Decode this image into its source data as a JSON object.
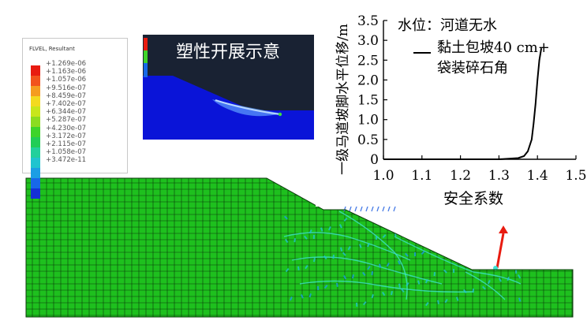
{
  "legend": {
    "title": "FLVEL, Resultant",
    "labels": [
      "+1.269e-06",
      "+1.163e-06",
      "+1.057e-06",
      "+9.516e-07",
      "+8.459e-07",
      "+7.402e-07",
      "+6.344e-07",
      "+5.287e-07",
      "+4.230e-07",
      "+3.172e-07",
      "+2.115e-07",
      "+1.058e-07",
      "+3.472e-11"
    ],
    "colors": [
      "#e81b10",
      "#f2531c",
      "#f59c1f",
      "#f3da1f",
      "#c8e61c",
      "#8cdc20",
      "#3ed42a",
      "#21cd56",
      "#22d09c",
      "#20c4cf",
      "#1c9ee4",
      "#1768e8",
      "#1430d6"
    ]
  },
  "inset": {
    "title": "塑性开展示意",
    "background": "#192233",
    "soil_color": "#0a14d8"
  },
  "mesh": {
    "soil_color": "#1ec01e",
    "line_color": "#0a3a0a"
  },
  "chart_data": {
    "type": "line",
    "xlabel": "安全系数",
    "ylabel": "一级马道坡脚水平位移/m",
    "xlim": [
      1.0,
      1.5
    ],
    "ylim": [
      0,
      3.5
    ],
    "xticks": [
      "1.0",
      "1.1",
      "1.2",
      "1.3",
      "1.4",
      "1.5"
    ],
    "yticks": [
      "0",
      "0.5",
      "1.0",
      "1.5",
      "2.0",
      "2.5",
      "3.0",
      "3.5"
    ],
    "annotation": "水位：河道无水",
    "series": [
      {
        "name": "黏土包坡40 cm+袋装碎石角",
        "name_lines": [
          "黏土包坡40 cm+",
          "袋装碎石角"
        ],
        "x": [
          1.0,
          1.1,
          1.2,
          1.3,
          1.35,
          1.365,
          1.375,
          1.385,
          1.39,
          1.395,
          1.4,
          1.405,
          1.41
        ],
        "y": [
          0,
          0,
          0,
          0,
          0.03,
          0.08,
          0.2,
          0.5,
          0.9,
          1.4,
          2.0,
          2.5,
          2.8
        ]
      }
    ]
  }
}
